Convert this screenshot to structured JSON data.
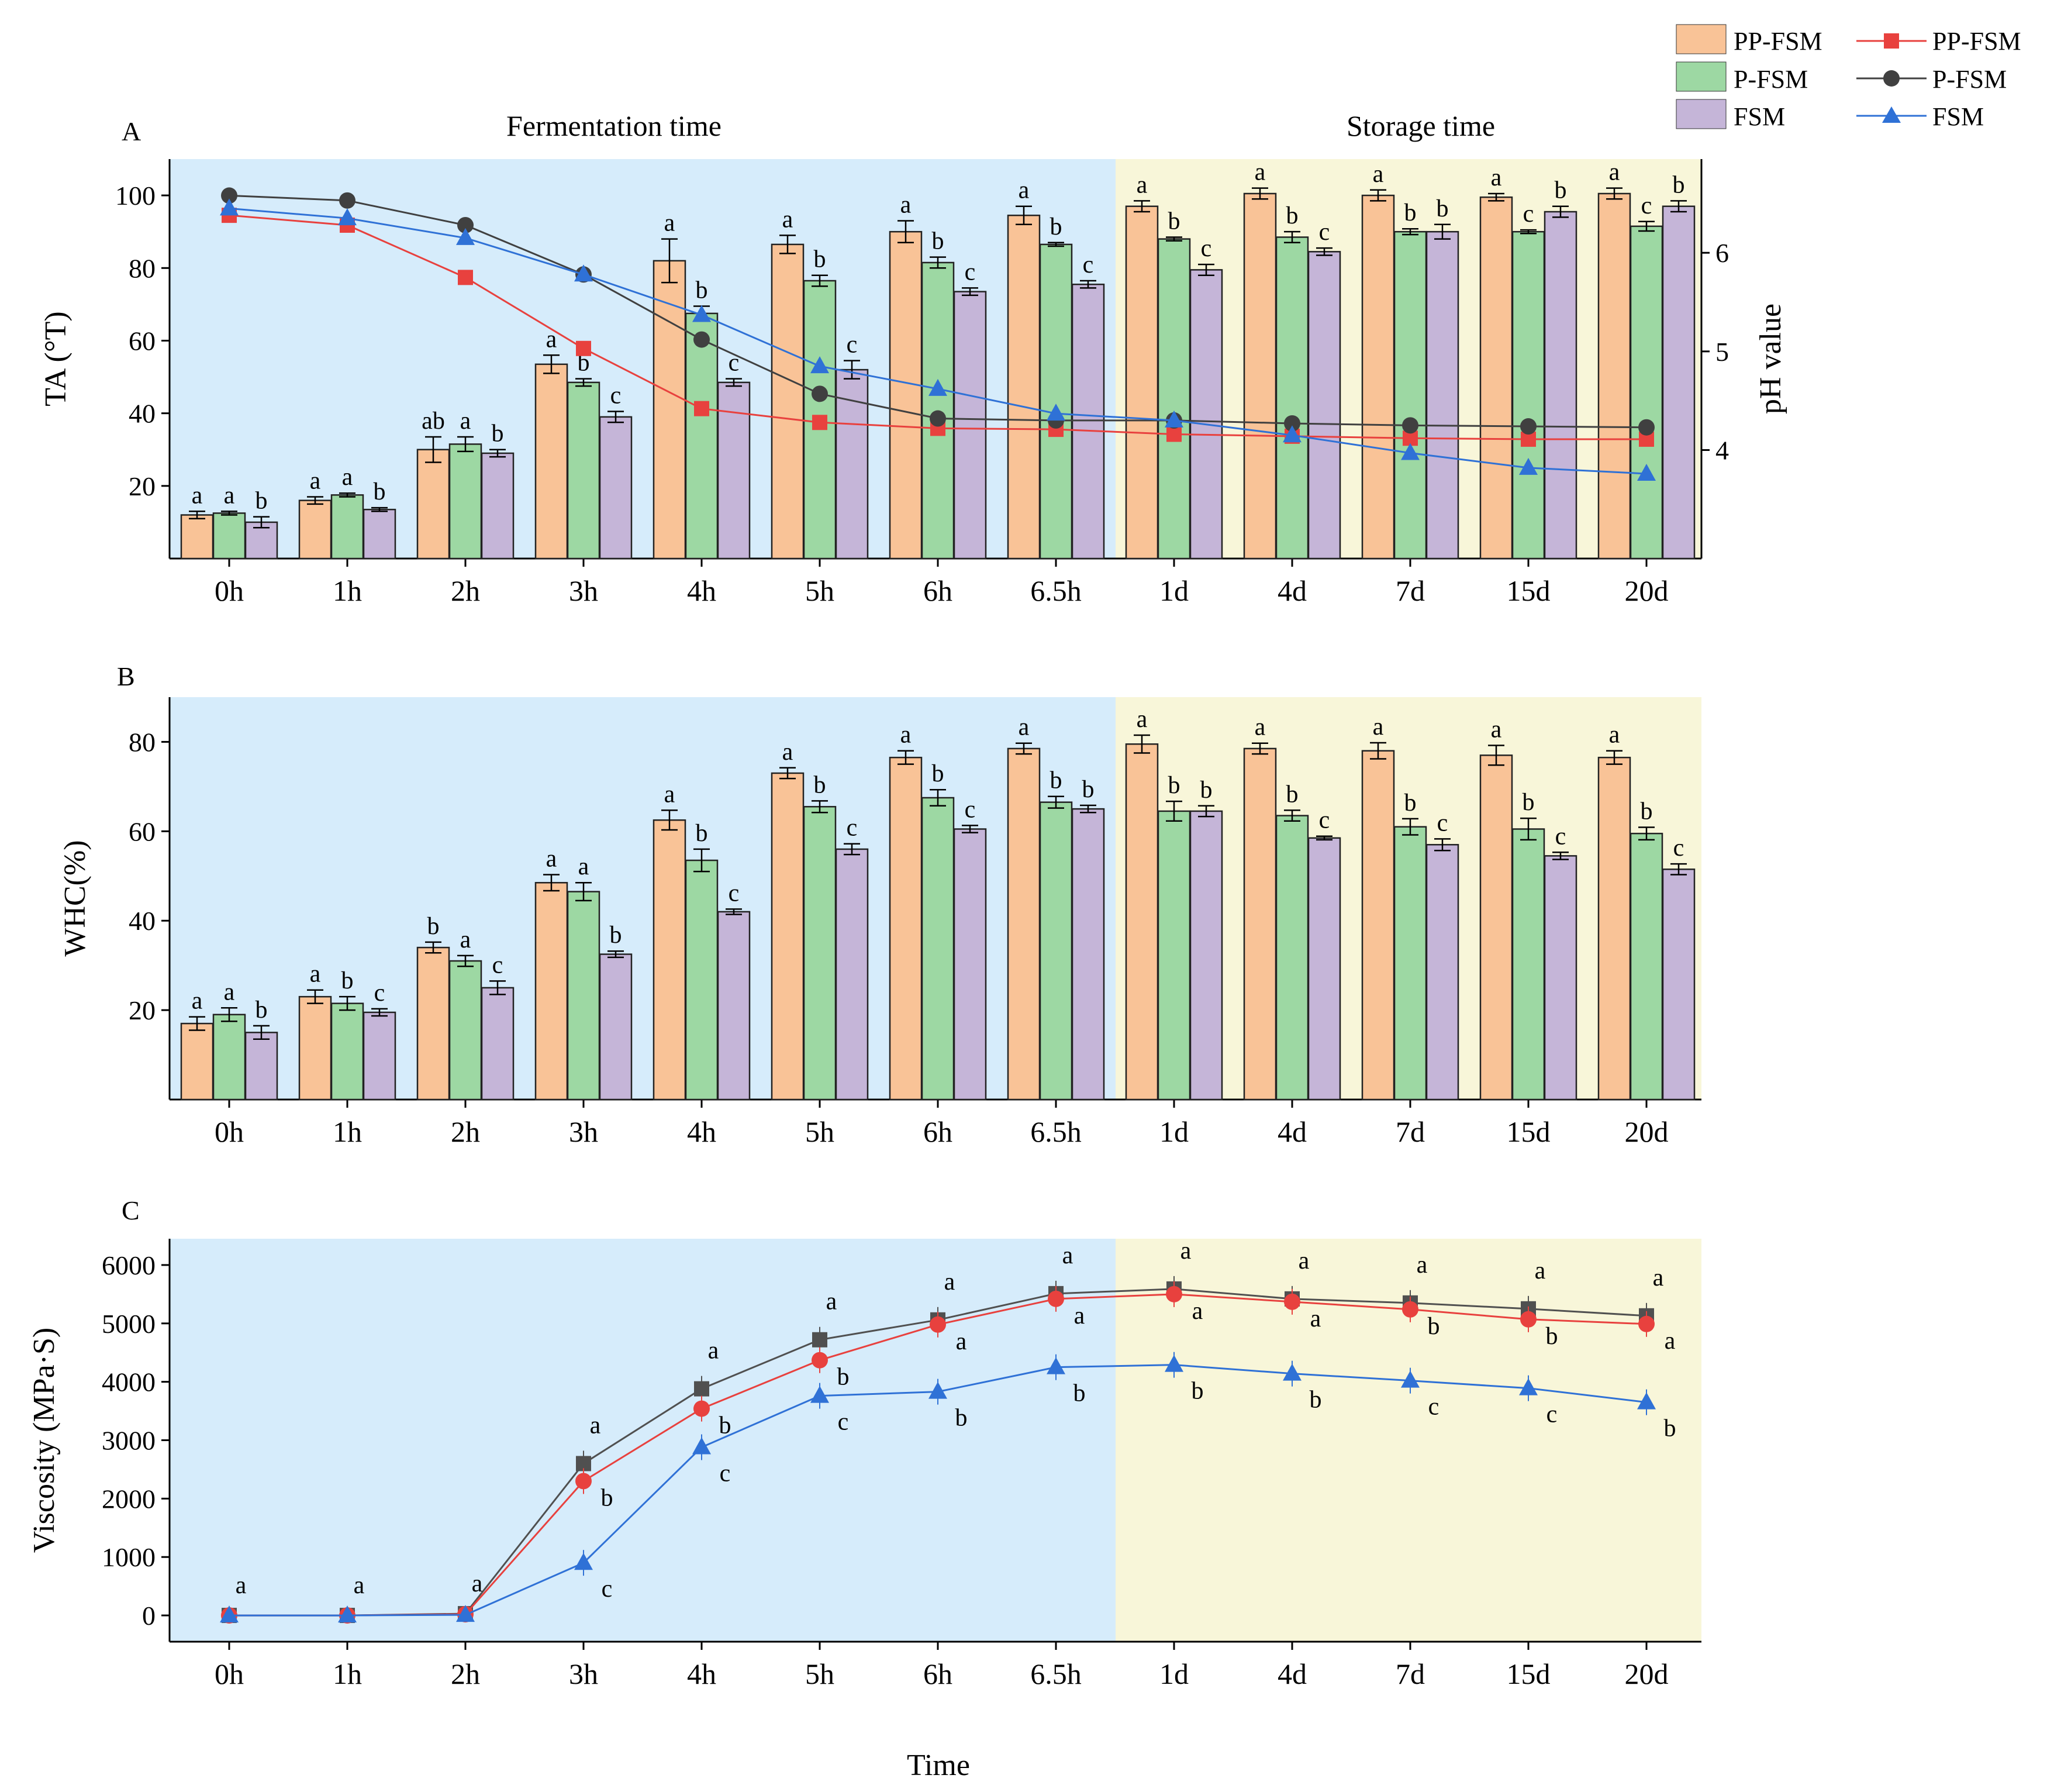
{
  "legend": {
    "bars": [
      {
        "label": "PP-FSM",
        "color": "#F9C397"
      },
      {
        "label": "P-FSM",
        "color": "#9DD8A3"
      },
      {
        "label": "FSM",
        "color": "#C5B5D8"
      }
    ],
    "lines": [
      {
        "label": "PP-FSM",
        "color": "#E8413E",
        "marker": "square"
      },
      {
        "label": "P-FSM",
        "color": "#404040",
        "marker": "circle"
      },
      {
        "label": "FSM",
        "color": "#2F71D6",
        "marker": "triangle"
      }
    ]
  },
  "region_labels": {
    "fermentation": "Fermentation time",
    "storage": "Storage time"
  },
  "colors": {
    "fermentation_bg": "#D6ECFB",
    "storage_bg": "#F8F6D9",
    "pp_fsm_bar": "#F9C397",
    "p_fsm_bar": "#9DD8A3",
    "fsm_bar": "#C5B5D8",
    "pp_fsm_line": "#E8413E",
    "p_fsm_line": "#404040",
    "fsm_line": "#2F71D6",
    "viscosity_p_fsm": "#505050"
  },
  "x_title": "Time",
  "chart_data": [
    {
      "panel": "A",
      "type": "bar",
      "categories": [
        "0h",
        "1h",
        "2h",
        "3h",
        "4h",
        "5h",
        "6h",
        "6.5h",
        "1d",
        "4d",
        "7d",
        "15d",
        "20d"
      ],
      "ylabel": "TA (°T)",
      "ylim": [
        0,
        110
      ],
      "yticks": [
        20,
        40,
        60,
        80,
        100
      ],
      "series": [
        {
          "name": "PP-FSM",
          "values": [
            12,
            16,
            30,
            53.5,
            82,
            86.5,
            90,
            94.5,
            97,
            100.5,
            100,
            99.5,
            100.5
          ],
          "errors": [
            1,
            1,
            3.5,
            2.5,
            6,
            2.5,
            3,
            2.5,
            1.5,
            1.5,
            1.5,
            1,
            1.5
          ],
          "letters": [
            "a",
            "a",
            "ab",
            "a",
            "a",
            "a",
            "a",
            "a",
            "a",
            "a",
            "a",
            "a",
            "a"
          ]
        },
        {
          "name": "P-FSM",
          "values": [
            12.5,
            17.5,
            31.5,
            48.5,
            67.5,
            76.5,
            81.5,
            86.5,
            88,
            88.5,
            90,
            90,
            91.5
          ],
          "errors": [
            0.5,
            0.5,
            2,
            1,
            2,
            1.5,
            1.5,
            0.5,
            0.5,
            1.5,
            0.8,
            0.5,
            1.3
          ],
          "letters": [
            "a",
            "a",
            "a",
            "b",
            "b",
            "b",
            "b",
            "b",
            "b",
            "b",
            "b",
            "c",
            "c"
          ]
        },
        {
          "name": "FSM",
          "values": [
            10,
            13.5,
            29,
            39,
            48.5,
            52,
            73.5,
            75.5,
            79.5,
            84.5,
            90,
            95.5,
            97
          ],
          "errors": [
            1.5,
            0.5,
            1,
            1.5,
            1,
            2.5,
            1,
            1,
            1.5,
            1,
            2,
            1.5,
            1.5
          ],
          "letters": [
            "b",
            "b",
            "b",
            "c",
            "c",
            "c",
            "c",
            "c",
            "c",
            "c",
            "b",
            "b",
            "b"
          ]
        }
      ],
      "secondary_axis": {
        "type": "line",
        "ylabel": "pH value",
        "ylim": [
          2.9,
          6.95
        ],
        "yticks": [
          4,
          5,
          6
        ],
        "series": [
          {
            "name": "PP-FSM",
            "values": [
              6.38,
              6.28,
              5.75,
              5.03,
              4.42,
              4.28,
              4.22,
              4.21,
              4.16,
              4.14,
              4.12,
              4.11,
              4.11
            ]
          },
          {
            "name": "P-FSM",
            "values": [
              6.58,
              6.53,
              6.28,
              5.78,
              5.12,
              4.57,
              4.32,
              4.3,
              4.3,
              4.27,
              4.25,
              4.24,
              4.23
            ]
          },
          {
            "name": "FSM",
            "values": [
              6.45,
              6.35,
              6.15,
              5.78,
              5.37,
              4.85,
              4.62,
              4.37,
              4.3,
              4.15,
              3.97,
              3.82,
              3.76
            ]
          }
        ]
      }
    },
    {
      "panel": "B",
      "type": "bar",
      "categories": [
        "0h",
        "1h",
        "2h",
        "3h",
        "4h",
        "5h",
        "6h",
        "6.5h",
        "1d",
        "4d",
        "7d",
        "15d",
        "20d"
      ],
      "ylabel": "WHC(%)",
      "ylim": [
        0,
        90
      ],
      "yticks": [
        20,
        40,
        60,
        80
      ],
      "series": [
        {
          "name": "PP-FSM",
          "values": [
            17,
            23,
            34,
            48.5,
            62.5,
            73,
            76.5,
            78.5,
            79.5,
            78.5,
            78,
            77,
            76.5
          ],
          "errors": [
            1.5,
            1.5,
            1.2,
            1.8,
            2.2,
            1.2,
            1.5,
            1.2,
            2,
            1.2,
            1.8,
            2.2,
            1.5
          ],
          "letters": [
            "a",
            "a",
            "b",
            "a",
            "a",
            "a",
            "a",
            "a",
            "a",
            "a",
            "a",
            "a",
            "a"
          ]
        },
        {
          "name": "P-FSM",
          "values": [
            19,
            21.5,
            31,
            46.5,
            53.5,
            65.5,
            67.5,
            66.5,
            64.5,
            63.5,
            61,
            60.5,
            59.5
          ],
          "errors": [
            1.5,
            1.5,
            1.2,
            2,
            2.5,
            1.3,
            1.8,
            1.3,
            2.2,
            1.2,
            1.8,
            2.4,
            1.4
          ],
          "letters": [
            "a",
            "b",
            "a",
            "a",
            "b",
            "b",
            "b",
            "b",
            "b",
            "b",
            "b",
            "b",
            "b"
          ]
        },
        {
          "name": "FSM",
          "values": [
            15,
            19.5,
            25,
            32.5,
            42,
            56,
            60.5,
            65,
            64.5,
            58.5,
            57,
            54.5,
            51.5
          ],
          "errors": [
            1.5,
            0.8,
            1.5,
            0.7,
            0.6,
            1.2,
            0.8,
            0.8,
            1.2,
            0.4,
            1.3,
            0.8,
            1.2
          ],
          "letters": [
            "b",
            "c",
            "c",
            "b",
            "c",
            "c",
            "c",
            "b",
            "b",
            "c",
            "c",
            "c",
            "c"
          ]
        }
      ]
    },
    {
      "panel": "C",
      "type": "line",
      "categories": [
        "0h",
        "1h",
        "2h",
        "3h",
        "4h",
        "5h",
        "6h",
        "6.5h",
        "1d",
        "4d",
        "7d",
        "15d",
        "20d"
      ],
      "ylabel": "Viscosity (MPa·S)",
      "ylim": [
        -450,
        6450
      ],
      "yticks": [
        0,
        1000,
        2000,
        3000,
        4000,
        5000,
        6000
      ],
      "series": [
        {
          "name": "P-FSM",
          "values": [
            0,
            0,
            30,
            2600,
            3880,
            4720,
            5060,
            5510,
            5590,
            5420,
            5350,
            5250,
            5130
          ],
          "letters": [
            "a",
            "a",
            "a",
            "a",
            "a",
            "a",
            "a",
            "a",
            "a",
            "a",
            "a",
            "a",
            "a"
          ]
        },
        {
          "name": "PP-FSM",
          "values": [
            0,
            0,
            20,
            2300,
            3540,
            4370,
            4980,
            5420,
            5500,
            5370,
            5240,
            5070,
            4990
          ],
          "letters": [
            "",
            "",
            "",
            "b",
            "b",
            "b",
            "a",
            "a",
            "a",
            "a",
            "b",
            "b",
            "a"
          ]
        },
        {
          "name": "FSM",
          "values": [
            0,
            0,
            10,
            900,
            2880,
            3760,
            3830,
            4250,
            4290,
            4140,
            4020,
            3890,
            3650
          ],
          "letters": [
            "",
            "",
            "",
            "c",
            "c",
            "c",
            "b",
            "b",
            "b",
            "b",
            "c",
            "c",
            "b"
          ]
        }
      ]
    }
  ]
}
